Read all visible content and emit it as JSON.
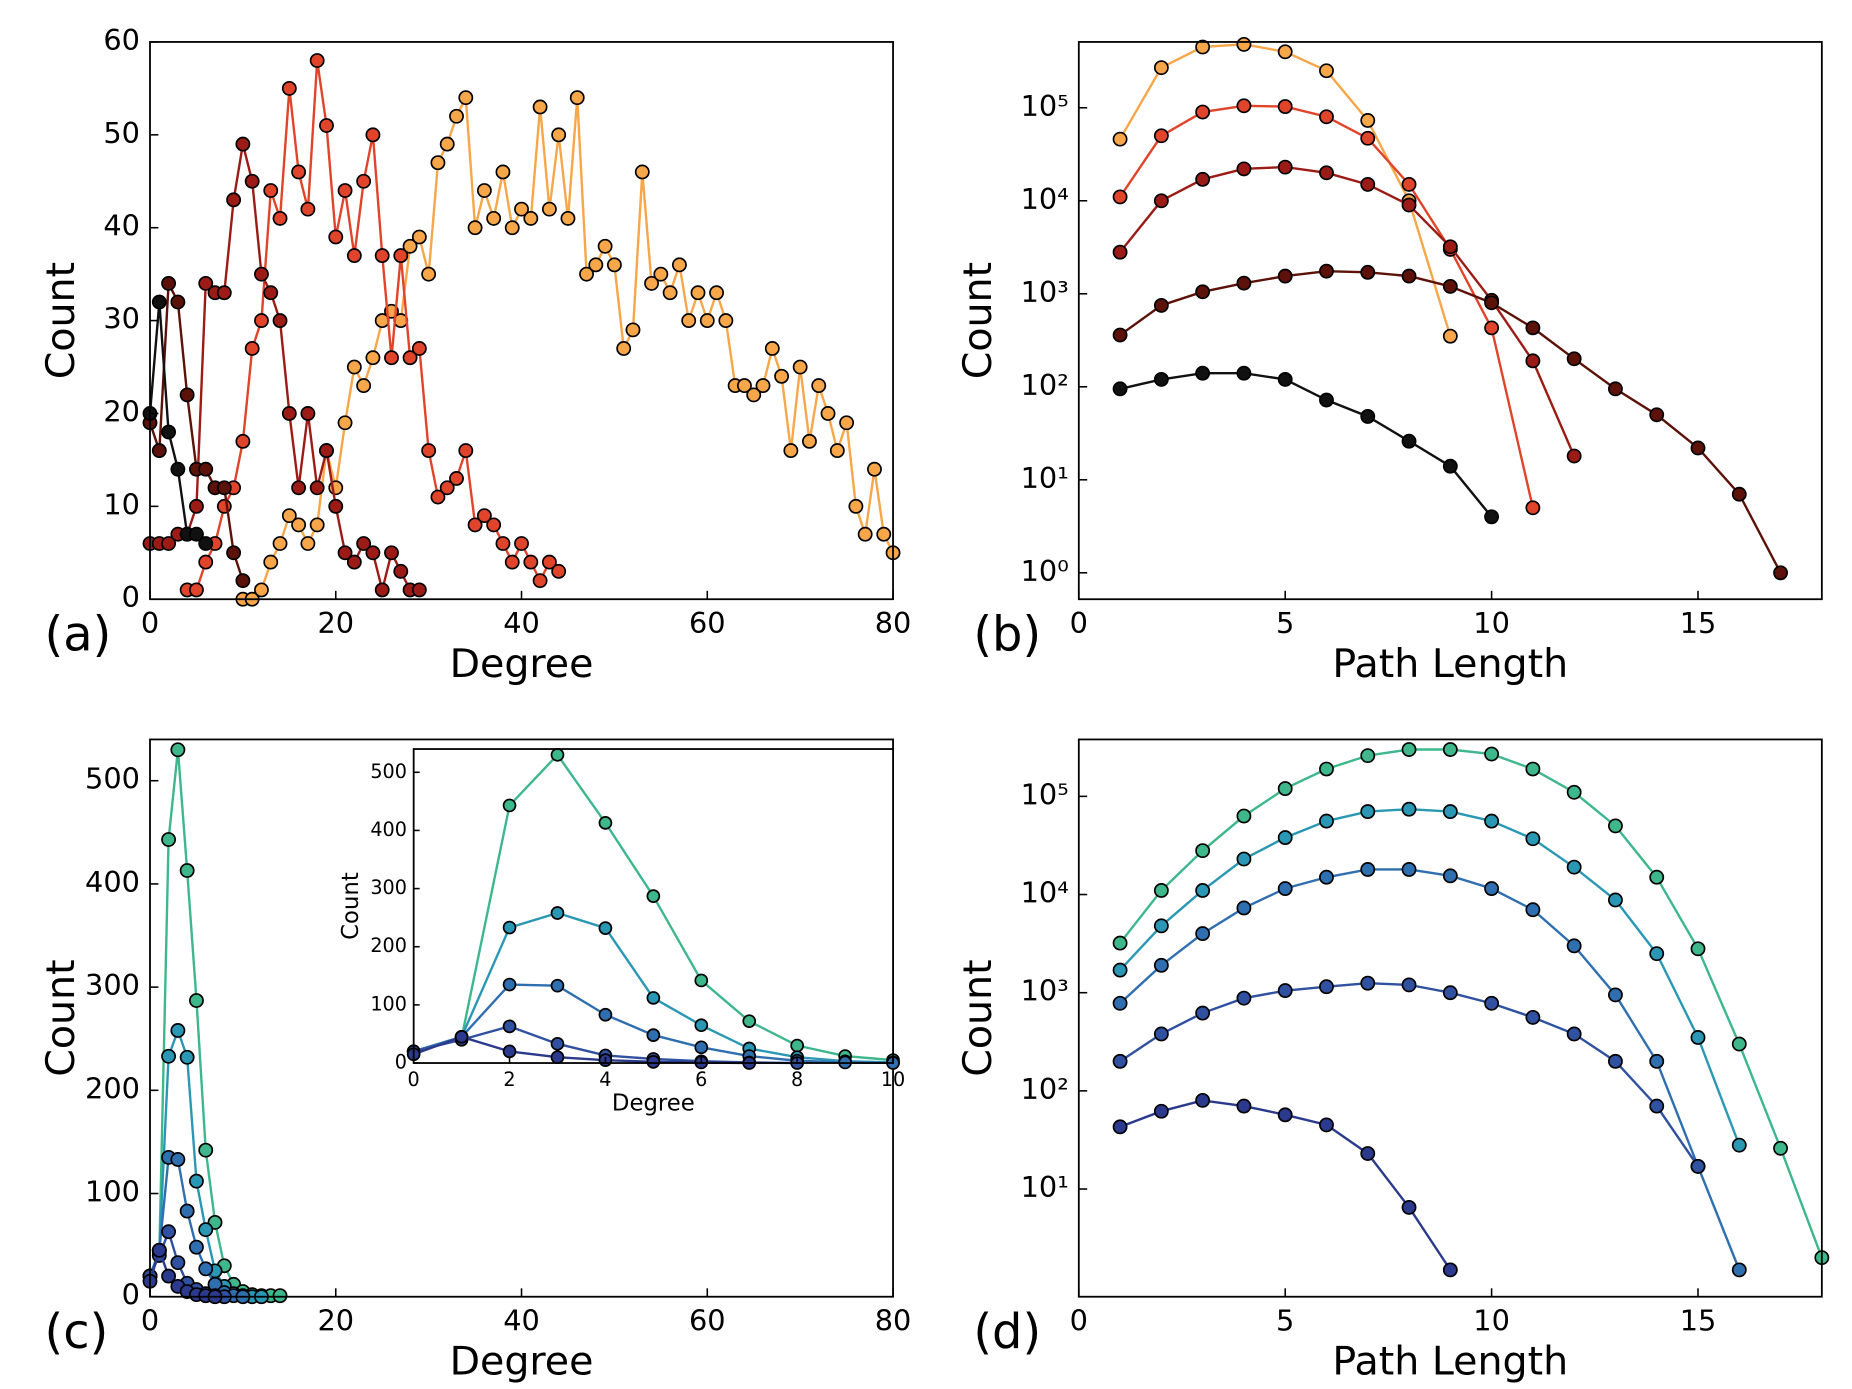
{
  "chart_data": [
    {
      "type": "line",
      "panel_label": "(a)",
      "xlabel": "Degree",
      "ylabel": "Count",
      "xlim": [
        0,
        80
      ],
      "ylim": [
        0,
        60
      ],
      "xticks": [
        0,
        20,
        40,
        60,
        80
      ],
      "yticks": [
        0,
        10,
        20,
        30,
        40,
        50,
        60
      ],
      "series": [
        {
          "color": "#f7a64a",
          "x": [
            10,
            11,
            12,
            13,
            14,
            15,
            16,
            17,
            18,
            19,
            20,
            21,
            22,
            23,
            24,
            25,
            26,
            27,
            28,
            29,
            30,
            31,
            32,
            33,
            34,
            35,
            36,
            37,
            38,
            39,
            40,
            41,
            42,
            43,
            44,
            45,
            46,
            47,
            48,
            49,
            50,
            51,
            52,
            53,
            54,
            55,
            56,
            57,
            58,
            59,
            60,
            61,
            62,
            63,
            64,
            65,
            66,
            67,
            68,
            69,
            70,
            71,
            72,
            73,
            74,
            75,
            76,
            77,
            78,
            79,
            80
          ],
          "values": [
            0,
            0,
            1,
            4,
            6,
            9,
            8,
            6,
            8,
            16,
            12,
            19,
            25,
            23,
            26,
            30,
            31,
            30,
            38,
            39,
            35,
            47,
            49,
            52,
            54,
            40,
            44,
            41,
            46,
            40,
            42,
            41,
            53,
            42,
            50,
            41,
            54,
            35,
            36,
            38,
            36,
            27,
            29,
            46,
            34,
            35,
            33,
            36,
            30,
            33,
            30,
            33,
            30,
            23,
            23,
            22,
            23,
            27,
            24,
            16,
            25,
            17,
            23,
            20,
            16,
            19,
            10,
            7,
            14,
            7,
            5
          ]
        },
        {
          "color": "#e0442a",
          "x": [
            4,
            5,
            6,
            7,
            8,
            9,
            10,
            11,
            12,
            13,
            14,
            15,
            16,
            17,
            18,
            19,
            20,
            21,
            22,
            23,
            24,
            25,
            26,
            27,
            28,
            29,
            30,
            31,
            32,
            33,
            34,
            35,
            36,
            37,
            38,
            39,
            40,
            41,
            42,
            43,
            44
          ],
          "values": [
            1,
            1,
            4,
            6,
            10,
            12,
            17,
            27,
            30,
            44,
            41,
            55,
            46,
            42,
            58,
            51,
            39,
            44,
            37,
            45,
            50,
            37,
            26,
            37,
            26,
            27,
            16,
            11,
            12,
            13,
            16,
            8,
            9,
            8,
            6,
            4,
            6,
            4,
            2,
            4,
            3
          ]
        },
        {
          "color": "#9b1c16",
          "x": [
            0,
            1,
            2,
            3,
            4,
            5,
            6,
            7,
            8,
            9,
            10,
            11,
            12,
            13,
            14,
            15,
            16,
            17,
            18,
            19,
            20,
            21,
            22,
            23,
            24,
            25,
            26,
            27,
            28,
            29
          ],
          "values": [
            6,
            6,
            6,
            7,
            7,
            10,
            34,
            33,
            33,
            43,
            49,
            45,
            35,
            33,
            30,
            20,
            12,
            20,
            12,
            16,
            10,
            5,
            4,
            6,
            5,
            1,
            5,
            3,
            1,
            1
          ]
        },
        {
          "color": "#5c1208",
          "x": [
            0,
            1,
            2,
            3,
            4,
            5,
            6,
            7,
            8,
            9,
            10
          ],
          "values": [
            19,
            16,
            34,
            32,
            22,
            14,
            14,
            12,
            12,
            5,
            2
          ]
        },
        {
          "color": "#111111",
          "x": [
            0,
            1,
            2,
            3,
            4,
            5,
            6
          ],
          "values": [
            20,
            32,
            18,
            14,
            7,
            7,
            6
          ]
        }
      ]
    },
    {
      "type": "line",
      "panel_label": "(b)",
      "xlabel": "Path Length",
      "ylabel": "Count",
      "log_y": true,
      "xlim": [
        0,
        18
      ],
      "ylim": [
        0.52,
        510000
      ],
      "xticks": [
        0,
        5,
        10,
        15
      ],
      "yticks": [
        {
          "value": 1,
          "label": "10⁰"
        },
        {
          "value": 10,
          "label": "10¹"
        },
        {
          "value": 100,
          "label": "10²"
        },
        {
          "value": 1000,
          "label": "10³"
        },
        {
          "value": 10000,
          "label": "10⁴"
        },
        {
          "value": 100000,
          "label": "10⁵"
        }
      ],
      "series": [
        {
          "color": "#f7a64a",
          "x": [
            1,
            2,
            3,
            4,
            5,
            6,
            7,
            8,
            9
          ],
          "values": [
            46000,
            270000,
            450000,
            480000,
            400000,
            250000,
            73000,
            10000,
            350
          ]
        },
        {
          "color": "#e0442a",
          "x": [
            1,
            2,
            3,
            4,
            5,
            6,
            7,
            8,
            9,
            10,
            11
          ],
          "values": [
            11000,
            50000,
            90000,
            105000,
            103000,
            80000,
            47000,
            15000,
            3000,
            430,
            5
          ]
        },
        {
          "color": "#9b1c16",
          "x": [
            1,
            2,
            3,
            4,
            5,
            6,
            7,
            8,
            9,
            10,
            11,
            12
          ],
          "values": [
            2800,
            10000,
            17000,
            22000,
            23000,
            20000,
            15000,
            9000,
            3200,
            850,
            190,
            18
          ]
        },
        {
          "color": "#5c1208",
          "x": [
            1,
            2,
            3,
            4,
            5,
            6,
            7,
            8,
            9,
            10,
            11,
            12,
            13,
            14,
            15,
            16,
            17
          ],
          "values": [
            360,
            750,
            1050,
            1300,
            1550,
            1750,
            1700,
            1550,
            1200,
            800,
            430,
            200,
            95,
            50,
            22,
            7,
            1
          ]
        },
        {
          "color": "#111111",
          "x": [
            1,
            2,
            3,
            4,
            5,
            6,
            7,
            8,
            9,
            10
          ],
          "values": [
            95,
            120,
            140,
            140,
            120,
            72,
            48,
            26,
            14,
            4
          ]
        }
      ]
    },
    {
      "type": "line",
      "panel_label": "(c)",
      "xlabel": "Degree",
      "ylabel": "Count",
      "xlim": [
        0,
        80
      ],
      "ylim": [
        0,
        540
      ],
      "xticks": [
        0,
        20,
        40,
        60,
        80
      ],
      "yticks": [
        0,
        100,
        200,
        300,
        400,
        500
      ],
      "series": [
        {
          "color": "#3db78b",
          "x": [
            0,
            1,
            2,
            3,
            4,
            5,
            6,
            7,
            8,
            9,
            10,
            11,
            12,
            13,
            14
          ],
          "values": [
            20,
            43,
            443,
            530,
            413,
            287,
            142,
            72,
            30,
            12,
            5,
            2,
            1,
            1,
            1
          ]
        },
        {
          "color": "#2a98b4",
          "x": [
            0,
            1,
            2,
            3,
            4,
            5,
            6,
            7,
            8,
            9,
            10,
            11,
            12
          ],
          "values": [
            20,
            45,
            233,
            258,
            232,
            112,
            65,
            25,
            10,
            3,
            1,
            0,
            0
          ]
        },
        {
          "color": "#2f6fb0",
          "x": [
            0,
            1,
            2,
            3,
            4,
            5,
            6,
            7,
            8,
            9,
            10
          ],
          "values": [
            20,
            45,
            135,
            133,
            83,
            48,
            27,
            12,
            4,
            1,
            0
          ]
        },
        {
          "color": "#3050a0",
          "x": [
            0,
            1,
            2,
            3,
            4,
            5,
            6,
            7,
            8
          ],
          "values": [
            20,
            40,
            63,
            33,
            13,
            7,
            3,
            1,
            0
          ]
        },
        {
          "color": "#2b3a8c",
          "x": [
            0,
            1,
            2,
            3,
            4,
            5,
            6,
            7
          ],
          "values": [
            15,
            45,
            20,
            10,
            5,
            2,
            1,
            0
          ]
        }
      ],
      "inset": {
        "xlabel": "Degree",
        "ylabel": "Count",
        "xlim": [
          0,
          10
        ],
        "ylim": [
          0,
          540
        ],
        "xticks": [
          0,
          2,
          4,
          6,
          8,
          10
        ],
        "yticks": [
          0,
          100,
          200,
          300,
          400,
          500
        ]
      }
    },
    {
      "type": "line",
      "panel_label": "(d)",
      "xlabel": "Path Length",
      "ylabel": "Count",
      "log_y": true,
      "xlim": [
        0,
        18
      ],
      "ylim": [
        0.8,
        380000
      ],
      "xticks": [
        0,
        5,
        10,
        15
      ],
      "yticks": [
        {
          "value": 10,
          "label": "10¹"
        },
        {
          "value": 100,
          "label": "10²"
        },
        {
          "value": 1000,
          "label": "10³"
        },
        {
          "value": 10000,
          "label": "10⁴"
        },
        {
          "value": 100000,
          "label": "10⁵"
        }
      ],
      "series": [
        {
          "color": "#3db78b",
          "x": [
            1,
            2,
            3,
            4,
            5,
            6,
            7,
            8,
            9,
            10,
            11,
            12,
            13,
            14,
            15,
            16,
            17,
            18
          ],
          "values": [
            3200,
            11000,
            28000,
            63000,
            120000,
            190000,
            260000,
            300000,
            300000,
            270000,
            190000,
            110000,
            50000,
            15000,
            2800,
            300,
            26,
            2
          ]
        },
        {
          "color": "#2a98b4",
          "x": [
            1,
            2,
            3,
            4,
            5,
            6,
            7,
            8,
            9,
            10,
            11,
            12,
            13,
            14,
            15,
            16
          ],
          "values": [
            1700,
            4800,
            11000,
            23000,
            38000,
            56000,
            70000,
            74000,
            70000,
            56000,
            37000,
            19000,
            8800,
            2500,
            350,
            28
          ]
        },
        {
          "color": "#2f6fb0",
          "x": [
            1,
            2,
            3,
            4,
            5,
            6,
            7,
            8,
            9,
            10,
            11,
            12,
            13,
            14,
            15,
            16
          ],
          "values": [
            780,
            1900,
            4000,
            7300,
            11500,
            15000,
            18000,
            18000,
            15500,
            11500,
            7000,
            3000,
            950,
            200,
            17,
            1.5
          ]
        },
        {
          "color": "#3050a0",
          "x": [
            1,
            2,
            3,
            4,
            5,
            6,
            7,
            8,
            9,
            10,
            11,
            12,
            13,
            14,
            15
          ],
          "values": [
            200,
            380,
            620,
            880,
            1050,
            1150,
            1250,
            1200,
            1000,
            780,
            560,
            380,
            200,
            70,
            17
          ]
        },
        {
          "color": "#2b3a8c",
          "x": [
            1,
            2,
            3,
            4,
            5,
            6,
            7,
            8,
            9
          ],
          "values": [
            43,
            62,
            80,
            70,
            57,
            45,
            23,
            6.5,
            1.5
          ]
        }
      ]
    }
  ]
}
